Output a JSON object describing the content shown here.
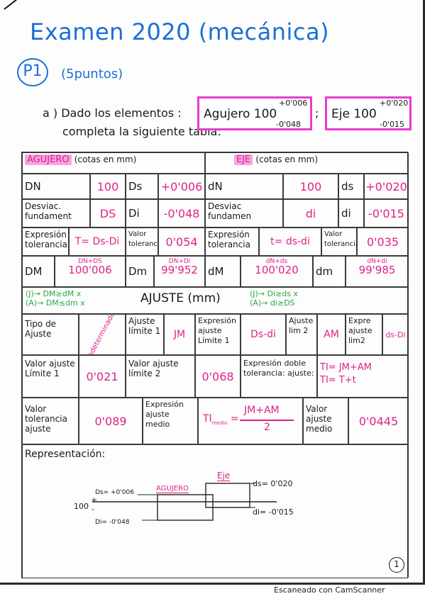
{
  "title": "Examen 2020 (mecánica)",
  "problem": {
    "label": "P1",
    "points": "(5puntos)"
  },
  "question": {
    "line1": "a ) Dado los elementos :",
    "line2": "completa la siguiente tabla:",
    "agujero": {
      "text": "Agujero 100",
      "upper": "+0'006",
      "lower": "-0'048"
    },
    "eje": {
      "text": "Eje 100",
      "upper": "+0'020",
      "lower": "-0'015"
    }
  },
  "table": {
    "agujero_header": "AGUJERO",
    "agujero_units": "(cotas en mm)",
    "eje_header": "EJE",
    "eje_units": "(cotas en mm)",
    "row1": {
      "DN": "DN",
      "DN_val": "100",
      "Ds": "Ds",
      "Ds_val": "+0'006",
      "dN": "dN",
      "dN_val": "100",
      "ds": "ds",
      "ds_val": "+0'020"
    },
    "row2": {
      "desv_ag": "Desviac. fundament",
      "DS": "DS",
      "Di": "Di",
      "Di_val": "-0'048",
      "desv_eje": "Desviac fundamen",
      "di": "di",
      "di_lbl": "di",
      "di_val": "-0'015"
    },
    "row3": {
      "expr_ag": "Expresión tolerancia",
      "T_formula": "T= Ds-Di",
      "valor_tol": "Valor tolerancia",
      "T_val": "0'054",
      "expr_eje": "Expresión tolerancia",
      "t_formula": "t= ds-di",
      "valor_tol_eje": "Valor tolerancia",
      "t_val": "0'035"
    },
    "row4": {
      "DM": "DM",
      "DM_formula": "DN+DS",
      "DM_val": "100'006",
      "Dm": "Dm",
      "Dm_formula": "DN+Di",
      "Dm_val": "99'952",
      "dM": "dM",
      "dM_formula": "dN+ds",
      "dM_val": "100'020",
      "dm": "dm",
      "dm_formula": "dN+di",
      "dm_val": "99'985"
    },
    "ajuste": {
      "title": "AJUSTE (mm)",
      "cond1": "(J)→ DM≥dM x",
      "cond2": "(A)→ DM≤dm x",
      "cond3": "(J)→ Di≥ds x",
      "cond4": "(A)→ di≥DS"
    },
    "row5": {
      "tipo": "Tipo de Ajuste",
      "tipo_val": "Indeterminado",
      "ajuste_lim1": "Ajuste límite 1",
      "JM": "JM",
      "expr_lim1": "Expresión ajuste Límite 1",
      "expr_lim1_val": "Ds-di",
      "ajuste_lim2": "Ajuste lim 2",
      "AM": "AM",
      "expr_lim2": "Expre ajuste lim2",
      "expr_lim2_val": "ds-Di"
    },
    "row6": {
      "val_lim1": "Valor ajuste Límite 1",
      "val_lim1_val": "0'021",
      "val_lim2": "Valor ajuste límite 2",
      "val_lim2_val": "0'068",
      "expr_tol": "Expresión doble tolerancia: ajuste:",
      "TI1": "TI= JM+AM",
      "TI2": "TI= T+t"
    },
    "row7": {
      "valor_tol": "Valor tolerancia ajuste",
      "valor_tol_val": "0'089",
      "expr_medio": "Expresión ajuste medio",
      "formula_lhs": "TI",
      "formula_sub": "medio",
      "formula_num": "JM+AM",
      "formula_den": "2",
      "valor_medio": "Valor ajuste medio",
      "valor_medio_val": "0'0445"
    },
    "representacion": "Representación:"
  },
  "drawing": {
    "agujero": "AGUJERO",
    "eje": "Eje",
    "ds_label": "ds= 0'020",
    "di_label": "di= -0'015",
    "Ds_label": "Ds= +0'006",
    "Di_label": "Di= -0'048",
    "nominal": "100",
    "plus": "+",
    "minus": "-"
  },
  "page_number": "1",
  "footer": "Escaneado con CamScanner"
}
